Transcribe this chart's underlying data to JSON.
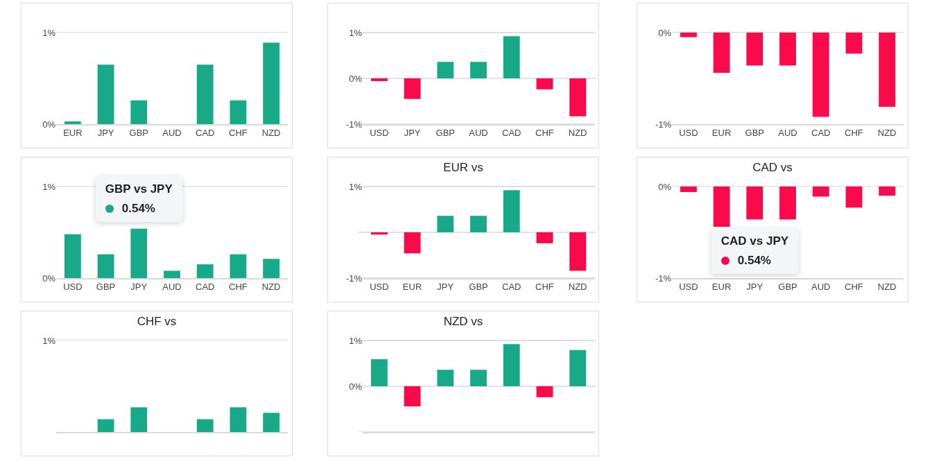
{
  "chart_data": [
    {
      "type": "bar",
      "categories": [
        "EUR",
        "JPY",
        "GBP",
        "AUD",
        "CAD",
        "CHF",
        "NZD"
      ],
      "values": [
        0.03,
        0.65,
        0.26,
        0,
        0.65,
        0.26,
        0.89
      ],
      "colors": [
        "#18aa88",
        "#18aa88",
        "#18aa88",
        "#18aa88",
        "#18aa88",
        "#18aa88",
        "#18aa88"
      ],
      "ylim": [
        0,
        1
      ],
      "yticks": [
        {
          "value": 0,
          "label": "0%"
        },
        {
          "value": 1,
          "label": "1%"
        }
      ]
    },
    {
      "type": "bar",
      "categories": [
        "USD",
        "JPY",
        "GBP",
        "AUD",
        "CAD",
        "CHF",
        "NZD"
      ],
      "values": [
        -0.06,
        -0.45,
        0.36,
        0.36,
        0.92,
        -0.24,
        -0.83
      ],
      "colors": [
        "#fb0a4b",
        "#fb0a4b",
        "#18aa88",
        "#18aa88",
        "#18aa88",
        "#fb0a4b",
        "#fb0a4b"
      ],
      "ylim": [
        -1,
        1
      ],
      "yticks": [
        {
          "value": -1,
          "label": "-1%"
        },
        {
          "value": 0,
          "label": "0%"
        },
        {
          "value": 1,
          "label": "1%"
        }
      ],
      "grid": "y"
    },
    {
      "type": "bar",
      "categories": [
        "USD",
        "EUR",
        "GBP",
        "AUD",
        "CAD",
        "CHF",
        "NZD"
      ],
      "values": [
        -0.05,
        -0.44,
        -0.36,
        -0.36,
        -0.92,
        -0.23,
        -0.81
      ],
      "colors": [
        "#fb0a4b",
        "#fb0a4b",
        "#fb0a4b",
        "#fb0a4b",
        "#fb0a4b",
        "#fb0a4b",
        "#fb0a4b"
      ],
      "ylim": [
        -1,
        0
      ],
      "yticks": [
        {
          "value": -1,
          "label": "-1%"
        },
        {
          "value": 0,
          "label": "0%"
        }
      ]
    },
    {
      "type": "bar",
      "categories": [
        "USD",
        "GBP",
        "JPY",
        "AUD",
        "CAD",
        "CHF",
        "NZD"
      ],
      "values": [
        0.48,
        0.26,
        0.54,
        0.08,
        0.15,
        0.26,
        0.21
      ],
      "colors": [
        "#18aa88",
        "#18aa88",
        "#18aa88",
        "#18aa88",
        "#18aa88",
        "#18aa88",
        "#18aa88"
      ],
      "ylim": [
        0,
        1
      ],
      "yticks": [
        {
          "value": 0,
          "label": "0%"
        },
        {
          "value": 1,
          "label": "1%"
        }
      ],
      "annotations": [
        {
          "text": "GBP vs JPY\n0.54%",
          "x": "JPY",
          "y": 0.54
        }
      ]
    },
    {
      "type": "bar",
      "title": "EUR vs",
      "categories": [
        "USD",
        "EUR",
        "JPY",
        "GBP",
        "CAD",
        "CHF",
        "NZD"
      ],
      "values": [
        -0.05,
        -0.46,
        0.36,
        0.36,
        0.92,
        -0.24,
        -0.84
      ],
      "colors": [
        "#fb0a4b",
        "#fb0a4b",
        "#18aa88",
        "#18aa88",
        "#18aa88",
        "#fb0a4b",
        "#fb0a4b"
      ],
      "ylim": [
        -1,
        1
      ],
      "yticks": [
        {
          "value": -1,
          "label": "-1%"
        },
        {
          "value": 0,
          "label": null
        },
        {
          "value": 1,
          "label": "1%"
        }
      ],
      "grid": "y"
    },
    {
      "type": "bar",
      "title": "CAD vs",
      "categories": [
        "USD",
        "EUR",
        "JPY",
        "GBP",
        "AUD",
        "CHF",
        "NZD"
      ],
      "values": [
        -0.06,
        -0.44,
        -0.36,
        -0.36,
        -0.11,
        -0.23,
        -0.1
      ],
      "colors": [
        "#fb0a4b",
        "#fb0a4b",
        "#fb0a4b",
        "#fb0a4b",
        "#fb0a4b",
        "#fb0a4b",
        "#fb0a4b"
      ],
      "ylim": [
        -1,
        0
      ],
      "yticks": [
        {
          "value": -1,
          "label": "-1%"
        },
        {
          "value": 0,
          "label": "0%"
        }
      ],
      "annotations": [
        {
          "text": "CAD vs JPY\n0.54%",
          "x": "JPY",
          "y": -0.36
        }
      ]
    },
    {
      "type": "bar",
      "title": "CHF vs",
      "categories": [
        null,
        null,
        null,
        null,
        null,
        null,
        null
      ],
      "values": [
        null,
        0.14,
        0.27,
        null,
        0.14,
        0.27,
        0.21
      ],
      "colors": [
        "#18aa88",
        "#18aa88",
        "#18aa88",
        "#18aa88",
        "#18aa88",
        "#18aa88",
        "#18aa88"
      ],
      "ylim": [
        0,
        1
      ],
      "yticks": [
        {
          "value": 0,
          "label": null
        },
        {
          "value": 1,
          "label": "1%"
        }
      ]
    },
    {
      "type": "bar",
      "title": "NZD vs",
      "categories": [
        null,
        null,
        null,
        null,
        null,
        null,
        null
      ],
      "values": [
        0.59,
        -0.44,
        0.36,
        0.36,
        0.92,
        -0.24,
        0.79
      ],
      "colors": [
        "#18aa88",
        "#fb0a4b",
        "#18aa88",
        "#18aa88",
        "#18aa88",
        "#fb0a4b",
        "#18aa88"
      ],
      "ylim": [
        -1,
        1
      ],
      "yticks": [
        {
          "value": -1,
          "label": null
        },
        {
          "value": 0,
          "label": "0%"
        },
        {
          "value": 1,
          "label": "1%"
        }
      ],
      "grid": "y"
    }
  ]
}
